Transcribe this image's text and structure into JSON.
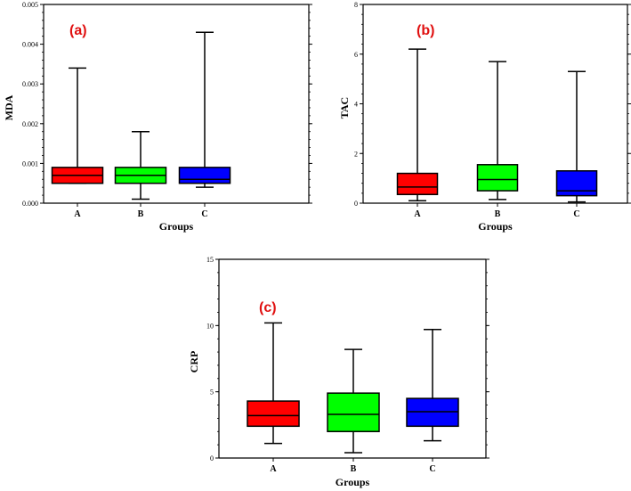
{
  "chart_data": [
    {
      "type": "boxplot",
      "panel_label": "(a)",
      "xlabel": "Groups",
      "ylabel": "MDA",
      "ylim": [
        0,
        0.005
      ],
      "yticks": [
        "0.000",
        "0.001",
        "0.002",
        "0.003",
        "0.004",
        "0.005"
      ],
      "categories": [
        "A",
        "B",
        "C"
      ],
      "boxes": [
        {
          "min": 0.0005,
          "q1": 0.0005,
          "median": 0.0007,
          "q3": 0.0009,
          "max": 0.0034
        },
        {
          "min": 0.0001,
          "q1": 0.0005,
          "median": 0.0007,
          "q3": 0.0009,
          "max": 0.0018
        },
        {
          "min": 0.0004,
          "q1": 0.0005,
          "median": 0.0006,
          "q3": 0.0009,
          "max": 0.0043
        }
      ]
    },
    {
      "type": "boxplot",
      "panel_label": "(b)",
      "xlabel": "Groups",
      "ylabel": "TAC",
      "ylim": [
        0,
        8
      ],
      "yticks": [
        "0",
        "2",
        "4",
        "6",
        "8"
      ],
      "categories": [
        "A",
        "B",
        "C"
      ],
      "boxes": [
        {
          "min": 0.1,
          "q1": 0.35,
          "median": 0.65,
          "q3": 1.2,
          "max": 6.2
        },
        {
          "min": 0.15,
          "q1": 0.5,
          "median": 0.95,
          "q3": 1.55,
          "max": 5.7
        },
        {
          "min": 0.05,
          "q1": 0.3,
          "median": 0.5,
          "q3": 1.3,
          "max": 5.3
        }
      ]
    },
    {
      "type": "boxplot",
      "panel_label": "(c)",
      "xlabel": "Groups",
      "ylabel": "CRP",
      "ylim": [
        0,
        15
      ],
      "yticks": [
        "0",
        "5",
        "10",
        "15"
      ],
      "categories": [
        "A",
        "B",
        "C"
      ],
      "boxes": [
        {
          "min": 1.1,
          "q1": 2.4,
          "median": 3.2,
          "q3": 4.3,
          "max": 10.2
        },
        {
          "min": 0.4,
          "q1": 2.0,
          "median": 3.3,
          "q3": 4.9,
          "max": 8.2
        },
        {
          "min": 1.3,
          "q1": 2.4,
          "median": 3.5,
          "q3": 4.5,
          "max": 9.7
        }
      ]
    }
  ],
  "colors": {
    "A": "#ff0000",
    "B": "#00ff00",
    "C": "#0000ff",
    "panel_label": "#e01010",
    "axis": "#000000"
  }
}
